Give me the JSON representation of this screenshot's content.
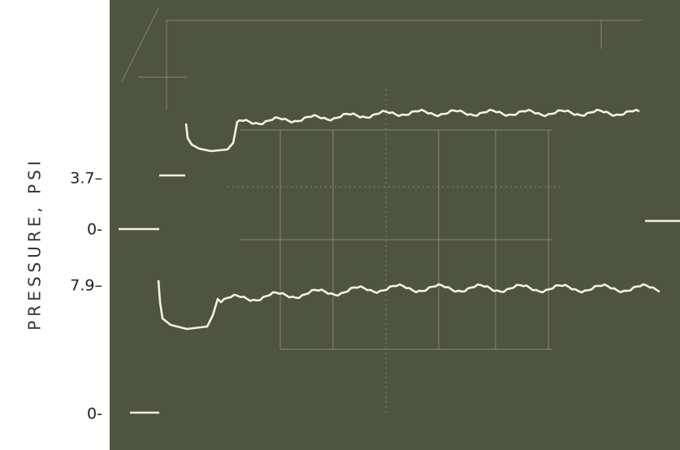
{
  "axis_label": "PRESSURE, PSI",
  "tick_labels": [
    "3.7–",
    "0-",
    "7.9–",
    "0-"
  ]
}
